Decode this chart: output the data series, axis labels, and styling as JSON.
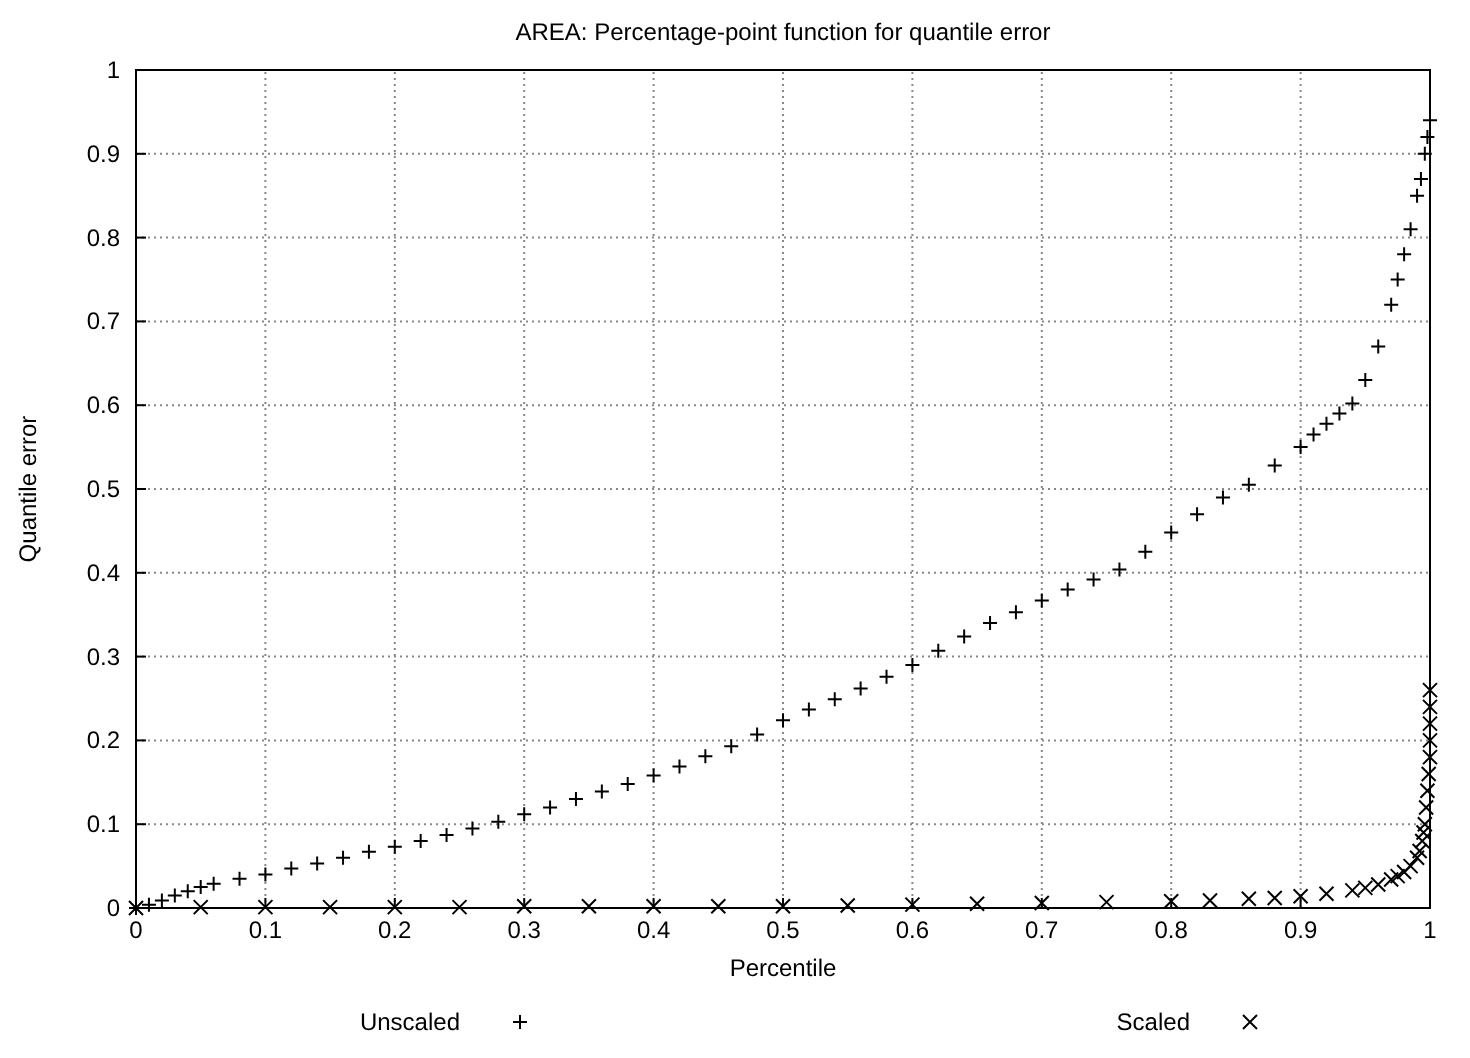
{
  "chart_data": {
    "type": "scatter",
    "title": "AREA:  Percentage-point function for quantile error",
    "xlabel": "Percentile",
    "ylabel": "Quantile error",
    "xlim": [
      0,
      1
    ],
    "ylim": [
      0,
      1
    ],
    "xticks": [
      0,
      0.1,
      0.2,
      0.3,
      0.4,
      0.5,
      0.6,
      0.7,
      0.8,
      0.9,
      1
    ],
    "yticks": [
      0,
      0.1,
      0.2,
      0.3,
      0.4,
      0.5,
      0.6,
      0.7,
      0.8,
      0.9,
      1
    ],
    "grid": true,
    "legend": "bottom",
    "series": [
      {
        "name": "Unscaled",
        "color": "#000000",
        "marker": "plus",
        "x": [
          0,
          0.01,
          0.02,
          0.03,
          0.04,
          0.05,
          0.06,
          0.08,
          0.1,
          0.12,
          0.14,
          0.16,
          0.18,
          0.2,
          0.22,
          0.24,
          0.26,
          0.28,
          0.3,
          0.32,
          0.34,
          0.36,
          0.38,
          0.4,
          0.42,
          0.44,
          0.46,
          0.48,
          0.5,
          0.52,
          0.54,
          0.56,
          0.58,
          0.6,
          0.62,
          0.64,
          0.66,
          0.68,
          0.7,
          0.72,
          0.74,
          0.76,
          0.78,
          0.8,
          0.82,
          0.84,
          0.86,
          0.88,
          0.9,
          0.91,
          0.92,
          0.93,
          0.94,
          0.95,
          0.96,
          0.97,
          0.975,
          0.98,
          0.985,
          0.99,
          0.993,
          0.996,
          0.998,
          1
        ],
        "values": [
          0,
          0.004,
          0.009,
          0.015,
          0.02,
          0.025,
          0.029,
          0.035,
          0.04,
          0.047,
          0.053,
          0.06,
          0.067,
          0.073,
          0.08,
          0.087,
          0.095,
          0.103,
          0.112,
          0.12,
          0.13,
          0.139,
          0.148,
          0.158,
          0.169,
          0.181,
          0.193,
          0.207,
          0.224,
          0.237,
          0.249,
          0.262,
          0.276,
          0.29,
          0.307,
          0.324,
          0.34,
          0.353,
          0.367,
          0.38,
          0.392,
          0.404,
          0.425,
          0.448,
          0.47,
          0.49,
          0.505,
          0.528,
          0.55,
          0.565,
          0.578,
          0.59,
          0.602,
          0.63,
          0.67,
          0.72,
          0.75,
          0.78,
          0.81,
          0.85,
          0.87,
          0.9,
          0.92,
          0.94
        ]
      },
      {
        "name": "Scaled",
        "color": "#000000",
        "marker": "cross",
        "x": [
          0,
          0.05,
          0.1,
          0.15,
          0.2,
          0.25,
          0.3,
          0.35,
          0.4,
          0.45,
          0.5,
          0.55,
          0.6,
          0.65,
          0.7,
          0.75,
          0.8,
          0.83,
          0.86,
          0.88,
          0.9,
          0.92,
          0.94,
          0.95,
          0.96,
          0.97,
          0.975,
          0.98,
          0.985,
          0.99,
          0.992,
          0.994,
          0.995,
          0.996,
          0.997,
          0.998,
          0.999,
          1,
          1,
          1,
          1,
          1
        ],
        "values": [
          0,
          0.001,
          0.001,
          0.001,
          0.001,
          0.001,
          0.002,
          0.002,
          0.002,
          0.002,
          0.002,
          0.003,
          0.004,
          0.005,
          0.006,
          0.007,
          0.008,
          0.009,
          0.011,
          0.012,
          0.014,
          0.017,
          0.021,
          0.024,
          0.028,
          0.034,
          0.038,
          0.043,
          0.05,
          0.06,
          0.068,
          0.08,
          0.09,
          0.1,
          0.12,
          0.14,
          0.16,
          0.18,
          0.2,
          0.22,
          0.24,
          0.26
        ]
      }
    ]
  }
}
